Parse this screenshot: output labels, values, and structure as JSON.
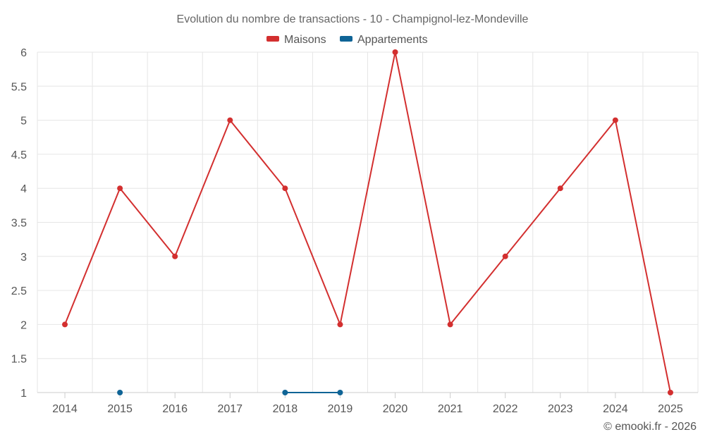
{
  "chart_data": {
    "type": "line",
    "title": "Evolution du nombre de transactions - 10 - Champignol-lez-Mondeville",
    "xlabel": "",
    "ylabel": "",
    "categories": [
      "2014",
      "2015",
      "2016",
      "2017",
      "2018",
      "2019",
      "2020",
      "2021",
      "2022",
      "2023",
      "2024",
      "2025"
    ],
    "ylim": [
      1,
      6
    ],
    "yticks": [
      "1",
      "1.5",
      "2",
      "2.5",
      "3",
      "3.5",
      "4",
      "4.5",
      "5",
      "5.5",
      "6"
    ],
    "grid": true,
    "legend_position": "top-center",
    "series": [
      {
        "name": "Maisons",
        "color": "#d32f2f",
        "values": [
          2,
          4,
          3,
          5,
          4,
          2,
          6,
          2,
          3,
          4,
          5,
          1
        ]
      },
      {
        "name": "Appartements",
        "color": "#0f6496",
        "values": [
          null,
          1,
          null,
          null,
          1,
          1,
          null,
          null,
          null,
          null,
          null,
          null
        ]
      }
    ],
    "credit": "© emooki.fr - 2026"
  }
}
